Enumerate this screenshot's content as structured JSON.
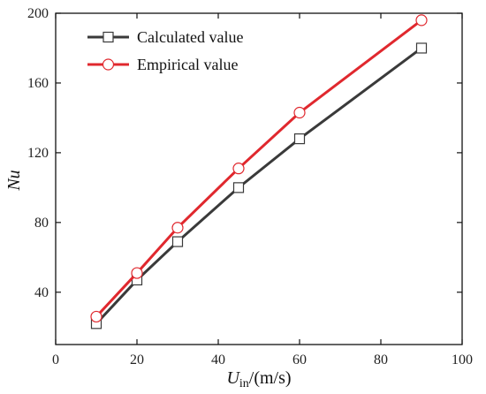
{
  "chart_data": {
    "type": "line",
    "x_axis": {
      "ticks": [
        0,
        20,
        40,
        60,
        80,
        100
      ],
      "min": 0,
      "max": 100
    },
    "y_axis": {
      "ticks": [
        40,
        80,
        120,
        160,
        200
      ],
      "min": 10,
      "max": 200
    },
    "xlabel": {
      "main": "U",
      "sub": "in",
      "rest": "/(m/s)"
    },
    "ylabel": "Nu",
    "legend_position": "top-left",
    "grid": false,
    "series": [
      {
        "name": "Calculated value",
        "color": "#3a3a3a",
        "marker": "square",
        "x": [
          10,
          20,
          30,
          45,
          60,
          90
        ],
        "y": [
          22,
          47,
          69,
          100,
          128,
          180
        ]
      },
      {
        "name": "Empirical value",
        "color": "#e0282e",
        "marker": "circle",
        "x": [
          10,
          20,
          30,
          45,
          60,
          90
        ],
        "y": [
          26,
          51,
          77,
          111,
          143,
          196
        ]
      }
    ]
  }
}
